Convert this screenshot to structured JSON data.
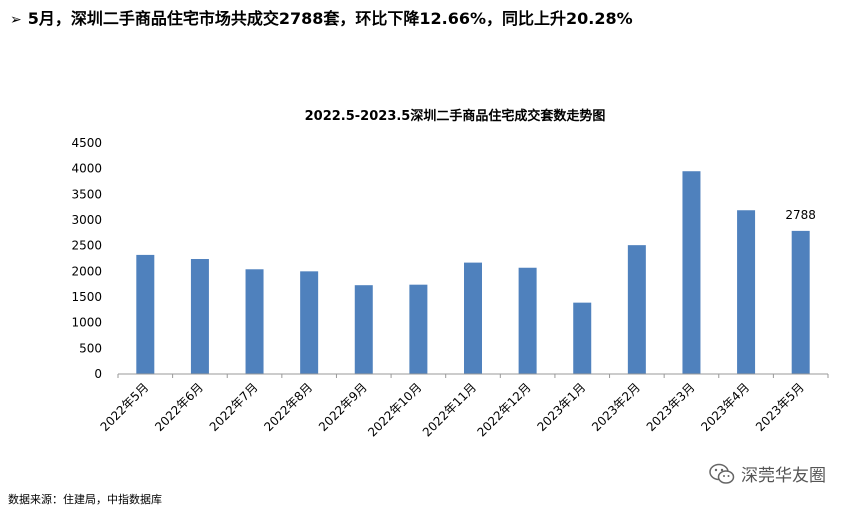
{
  "headline": {
    "arrow": "➢",
    "text": "5月，深圳二手商品住宅市场共成交2788套，环比下降12.66%，同比上升20.28%"
  },
  "chart_data": {
    "type": "bar",
    "title": "2022.5-2023.5深圳二手商品住宅成交套数走势图",
    "xlabel": "",
    "ylabel": "",
    "categories": [
      "2022年5月",
      "2022年6月",
      "2022年7月",
      "2022年8月",
      "2022年9月",
      "2022年10月",
      "2022年11月",
      "2022年12月",
      "2023年1月",
      "2023年2月",
      "2023年3月",
      "2023年4月",
      "2023年5月"
    ],
    "values": [
      2320,
      2240,
      2040,
      2000,
      1730,
      1740,
      2170,
      2070,
      1390,
      2510,
      3950,
      3190,
      2788
    ],
    "ylim": [
      0,
      4500
    ],
    "yticks": [
      0,
      500,
      1000,
      1500,
      2000,
      2500,
      3000,
      3500,
      4000,
      4500
    ],
    "data_labels": [
      {
        "index": 12,
        "text": "2788"
      }
    ],
    "bar_color": "#4f81bd",
    "grid": false,
    "legend": "none"
  },
  "footer": {
    "source": "数据来源：住建局，中指数据库"
  },
  "watermark": {
    "icon": "wechat-icon",
    "text": "深莞华友圈"
  }
}
